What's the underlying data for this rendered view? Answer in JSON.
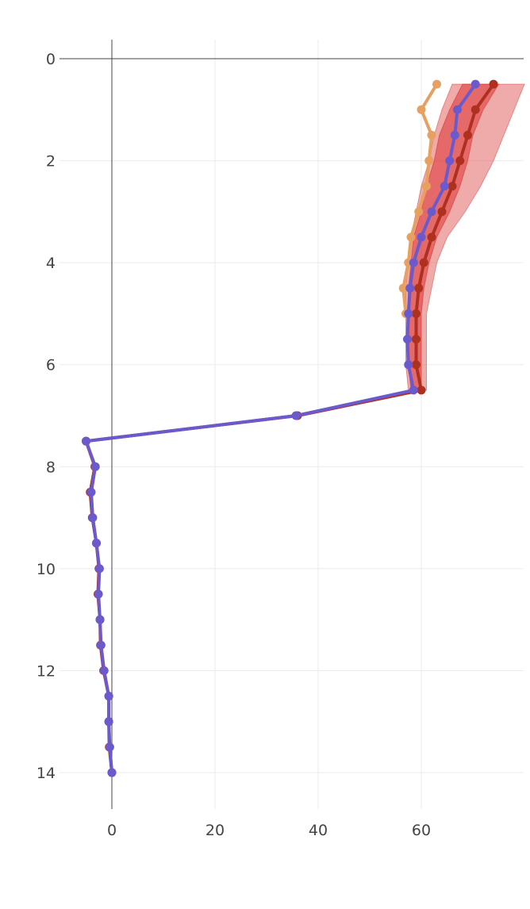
{
  "chart_data": {
    "type": "line",
    "title": "",
    "xlabel": "",
    "ylabel": "",
    "orientation": "depth profile (y axis reversed)",
    "xlim": [
      -10.5,
      80
    ],
    "ylim": [
      14.8,
      -0.4
    ],
    "x_ticks": [
      0,
      20,
      40,
      60
    ],
    "y_ticks": [
      0,
      2,
      4,
      6,
      8,
      10,
      12,
      14
    ],
    "grid": true,
    "legend": "none",
    "band": {
      "name": "red uncertainty band",
      "color": "#e05555",
      "y": [
        0.5,
        1.0,
        1.5,
        2.0,
        2.5,
        3.0,
        3.5,
        4.0,
        4.5,
        5.0,
        5.5,
        6.0,
        6.5
      ],
      "lower": [
        66,
        64,
        62.5,
        61.5,
        60,
        59,
        58,
        57.5,
        57,
        57,
        57,
        57,
        57.5
      ],
      "upper": [
        80,
        78,
        76,
        74,
        71.5,
        68.5,
        65,
        63,
        62,
        61,
        61,
        61,
        61
      ]
    },
    "inner_band": {
      "name": "inner red band",
      "color": "#dd3333",
      "y": [
        0.5,
        1.0,
        1.5,
        2.0,
        2.5,
        3.0,
        3.5,
        4.0,
        4.5,
        5.0,
        5.5,
        6.0,
        6.5
      ],
      "lower": [
        68,
        65.5,
        63.5,
        62.5,
        61,
        60,
        58.5,
        58,
        57.5,
        57.5,
        57.5,
        57.5,
        58
      ],
      "upper": [
        75,
        72,
        70,
        69,
        67.5,
        65.5,
        63,
        61.5,
        60.5,
        60,
        60,
        60,
        60
      ]
    },
    "series": [
      {
        "name": "orange",
        "color": "#e8a060",
        "y": [
          0.5,
          1.0,
          1.5,
          2.0,
          2.5,
          3.0,
          3.5,
          4.0,
          4.5,
          5.0
        ],
        "x": [
          63,
          60,
          62,
          61.5,
          61,
          59.5,
          58,
          57.5,
          56.5,
          57
        ]
      },
      {
        "name": "dark red",
        "color": "#b03020",
        "y": [
          0.5,
          1.0,
          1.5,
          2.0,
          2.5,
          3.0,
          3.5,
          4.0,
          4.5,
          5.0,
          5.5,
          6.0,
          6.5,
          7.0,
          7.5,
          8.0,
          8.5,
          9.0,
          9.5,
          10.0,
          10.5,
          11.0,
          11.5,
          12.0,
          12.5,
          13.0,
          13.5,
          14.0
        ],
        "x": [
          74,
          70.5,
          69,
          67.5,
          66,
          64,
          62,
          60.5,
          59.5,
          59,
          59,
          59,
          60,
          36,
          -5,
          -3.3,
          -4.2,
          -3.8,
          -3,
          -2.5,
          -2.7,
          -2.3,
          -2.2,
          -1.6,
          -0.6,
          -0.6,
          -0.5,
          0
        ]
      },
      {
        "name": "purple",
        "color": "#6a5acd",
        "y": [
          0.5,
          1.0,
          1.5,
          2.0,
          2.5,
          3.0,
          3.5,
          4.0,
          4.5,
          5.0,
          5.5,
          6.0,
          6.5,
          7.0,
          7.5,
          8.0,
          8.5,
          9.0,
          9.5,
          10.0,
          10.5,
          11.0,
          11.5,
          12.0,
          12.5,
          13.0,
          13.5,
          14.0
        ],
        "x": [
          70.5,
          67,
          66.5,
          65.5,
          64.5,
          62,
          60,
          58.5,
          57.8,
          57.5,
          57.3,
          57.5,
          58.5,
          35.7,
          -5,
          -3.2,
          -4,
          -3.7,
          -3,
          -2.4,
          -2.6,
          -2.3,
          -2.1,
          -1.5,
          -0.6,
          -0.6,
          -0.4,
          0
        ]
      }
    ]
  }
}
